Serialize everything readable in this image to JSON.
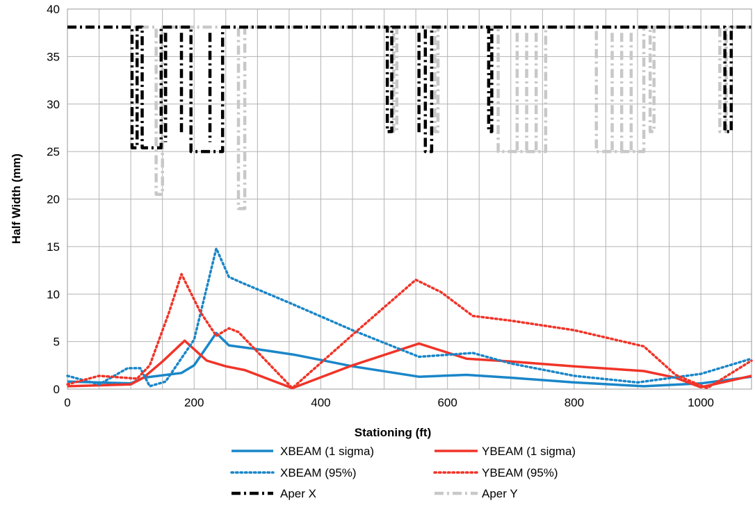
{
  "chart_data": {
    "type": "line",
    "xlabel": "Stationing (ft)",
    "ylabel": "Half Width (mm)",
    "xlim": [
      0,
      1080
    ],
    "ylim": [
      0,
      40
    ],
    "x_ticks": [
      0,
      200,
      400,
      600,
      800,
      1000
    ],
    "y_ticks": [
      0,
      5,
      10,
      15,
      20,
      25,
      30,
      35,
      40
    ],
    "x_tick_labels": [
      "0",
      "200",
      "400",
      "600",
      "800",
      "1000"
    ],
    "y_tick_labels": [
      "0",
      "5",
      "10",
      "15",
      "20",
      "25",
      "30",
      "35",
      "40"
    ],
    "x_minor_step": 50,
    "grid": true,
    "legend_position": "bottom",
    "series": [
      {
        "name": "XBEAM (1 sigma)",
        "color": "#1a86c8",
        "style": "solid",
        "points": [
          [
            0,
            0.8
          ],
          [
            100,
            0.6
          ],
          [
            120,
            1.2
          ],
          [
            180,
            1.7
          ],
          [
            200,
            2.5
          ],
          [
            235,
            5.9
          ],
          [
            255,
            4.6
          ],
          [
            300,
            4.2
          ],
          [
            360,
            3.6
          ],
          [
            450,
            2.4
          ],
          [
            555,
            1.3
          ],
          [
            630,
            1.5
          ],
          [
            700,
            1.2
          ],
          [
            800,
            0.7
          ],
          [
            910,
            0.3
          ],
          [
            1000,
            0.6
          ],
          [
            1080,
            1.3
          ]
        ]
      },
      {
        "name": "YBEAM (1 sigma)",
        "color": "#f03428",
        "style": "solid",
        "points": [
          [
            0,
            0.3
          ],
          [
            100,
            0.5
          ],
          [
            120,
            1.2
          ],
          [
            150,
            2.9
          ],
          [
            185,
            5.1
          ],
          [
            220,
            3.0
          ],
          [
            250,
            2.4
          ],
          [
            280,
            2.0
          ],
          [
            355,
            0.1
          ],
          [
            450,
            2.5
          ],
          [
            555,
            4.8
          ],
          [
            630,
            3.2
          ],
          [
            700,
            2.9
          ],
          [
            800,
            2.4
          ],
          [
            910,
            1.9
          ],
          [
            960,
            1.2
          ],
          [
            1000,
            0.2
          ],
          [
            1080,
            1.4
          ]
        ]
      },
      {
        "name": "XBEAM (95%)",
        "color": "#1a86c8",
        "style": "dotted",
        "points": [
          [
            0,
            1.4
          ],
          [
            50,
            0.5
          ],
          [
            95,
            2.2
          ],
          [
            115,
            2.2
          ],
          [
            130,
            0.3
          ],
          [
            155,
            0.8
          ],
          [
            200,
            5.2
          ],
          [
            235,
            14.8
          ],
          [
            255,
            11.8
          ],
          [
            275,
            11.2
          ],
          [
            350,
            9.1
          ],
          [
            450,
            6.2
          ],
          [
            555,
            3.4
          ],
          [
            640,
            3.8
          ],
          [
            700,
            2.7
          ],
          [
            800,
            1.4
          ],
          [
            900,
            0.7
          ],
          [
            1000,
            1.6
          ],
          [
            1080,
            3.2
          ]
        ]
      },
      {
        "name": "YBEAM (95%)",
        "color": "#f03428",
        "style": "dotted",
        "points": [
          [
            0,
            0.5
          ],
          [
            50,
            1.4
          ],
          [
            110,
            1.1
          ],
          [
            130,
            2.5
          ],
          [
            160,
            8.0
          ],
          [
            180,
            12.1
          ],
          [
            210,
            8.1
          ],
          [
            235,
            5.6
          ],
          [
            255,
            6.4
          ],
          [
            270,
            6.0
          ],
          [
            355,
            0.1
          ],
          [
            455,
            6.0
          ],
          [
            550,
            11.5
          ],
          [
            590,
            10.2
          ],
          [
            640,
            7.7
          ],
          [
            700,
            7.2
          ],
          [
            800,
            6.2
          ],
          [
            910,
            4.5
          ],
          [
            960,
            1.5
          ],
          [
            1010,
            0.1
          ],
          [
            1080,
            3.0
          ]
        ]
      },
      {
        "name": "Aper X",
        "color": "#000000",
        "style": "dashed",
        "points": [
          [
            0,
            38.1
          ],
          [
            102,
            38.1
          ],
          [
            102,
            25.4
          ],
          [
            110,
            25.4
          ],
          [
            110,
            38.1
          ],
          [
            118,
            38.1
          ],
          [
            118,
            25.4
          ],
          [
            148,
            25.4
          ],
          [
            148,
            38.1
          ],
          [
            195,
            38.1
          ],
          [
            195,
            25.0
          ],
          [
            245,
            25.0
          ],
          [
            245,
            38.1
          ],
          [
            505,
            38.1
          ],
          [
            505,
            27.1
          ],
          [
            512,
            27.1
          ],
          [
            512,
            38.1
          ],
          [
            565,
            38.1
          ],
          [
            565,
            25.0
          ],
          [
            575,
            25.0
          ],
          [
            575,
            38.1
          ],
          [
            665,
            38.1
          ],
          [
            665,
            27.1
          ],
          [
            670,
            27.1
          ],
          [
            670,
            38.1
          ],
          [
            1038,
            38.1
          ],
          [
            1038,
            27.1
          ],
          [
            1048,
            27.1
          ],
          [
            1048,
            38.1
          ],
          [
            1080,
            38.1
          ]
        ]
      },
      {
        "name": "Aper Y",
        "color": "#c8c8c8",
        "style": "dashed",
        "points": [
          [
            0,
            38.1
          ],
          [
            140,
            38.1
          ],
          [
            140,
            20.5
          ],
          [
            150,
            20.5
          ],
          [
            150,
            38.1
          ],
          [
            270,
            38.1
          ],
          [
            270,
            19.0
          ],
          [
            280,
            19.0
          ],
          [
            280,
            38.1
          ],
          [
            515,
            38.1
          ],
          [
            515,
            27.1
          ],
          [
            520,
            27.1
          ],
          [
            520,
            38.1
          ],
          [
            580,
            38.1
          ],
          [
            580,
            27.1
          ],
          [
            585,
            27.1
          ],
          [
            585,
            38.1
          ],
          [
            680,
            38.1
          ],
          [
            680,
            25.0
          ],
          [
            755,
            25.0
          ],
          [
            755,
            38.1
          ],
          [
            835,
            38.1
          ],
          [
            835,
            25.0
          ],
          [
            910,
            25.0
          ],
          [
            910,
            38.1
          ],
          [
            920,
            38.1
          ],
          [
            920,
            27.1
          ],
          [
            926,
            27.1
          ],
          [
            926,
            38.1
          ],
          [
            1030,
            38.1
          ],
          [
            1030,
            27.1
          ],
          [
            1040,
            27.1
          ],
          [
            1040,
            38.1
          ],
          [
            1080,
            38.1
          ]
        ]
      }
    ],
    "aperture_bars": [
      {
        "series": "Aper X",
        "x": 155,
        "y_low": 26.0,
        "y_high": 37.5
      },
      {
        "series": "Aper X",
        "x": 180,
        "y_low": 27.0,
        "y_high": 37.5
      },
      {
        "series": "Aper X",
        "x": 225,
        "y_low": 26.0,
        "y_high": 37.5
      },
      {
        "series": "Aper X",
        "x": 555,
        "y_low": 27.0,
        "y_high": 37.5
      },
      {
        "series": "Aper Y",
        "x": 710,
        "y_low": 25.0,
        "y_high": 37.5
      },
      {
        "series": "Aper Y",
        "x": 725,
        "y_low": 25.0,
        "y_high": 37.5
      },
      {
        "series": "Aper Y",
        "x": 740,
        "y_low": 25.0,
        "y_high": 37.5
      },
      {
        "series": "Aper Y",
        "x": 860,
        "y_low": 25.0,
        "y_high": 37.5
      },
      {
        "series": "Aper Y",
        "x": 875,
        "y_low": 25.0,
        "y_high": 37.5
      },
      {
        "series": "Aper Y",
        "x": 890,
        "y_low": 25.0,
        "y_high": 37.5
      }
    ]
  }
}
